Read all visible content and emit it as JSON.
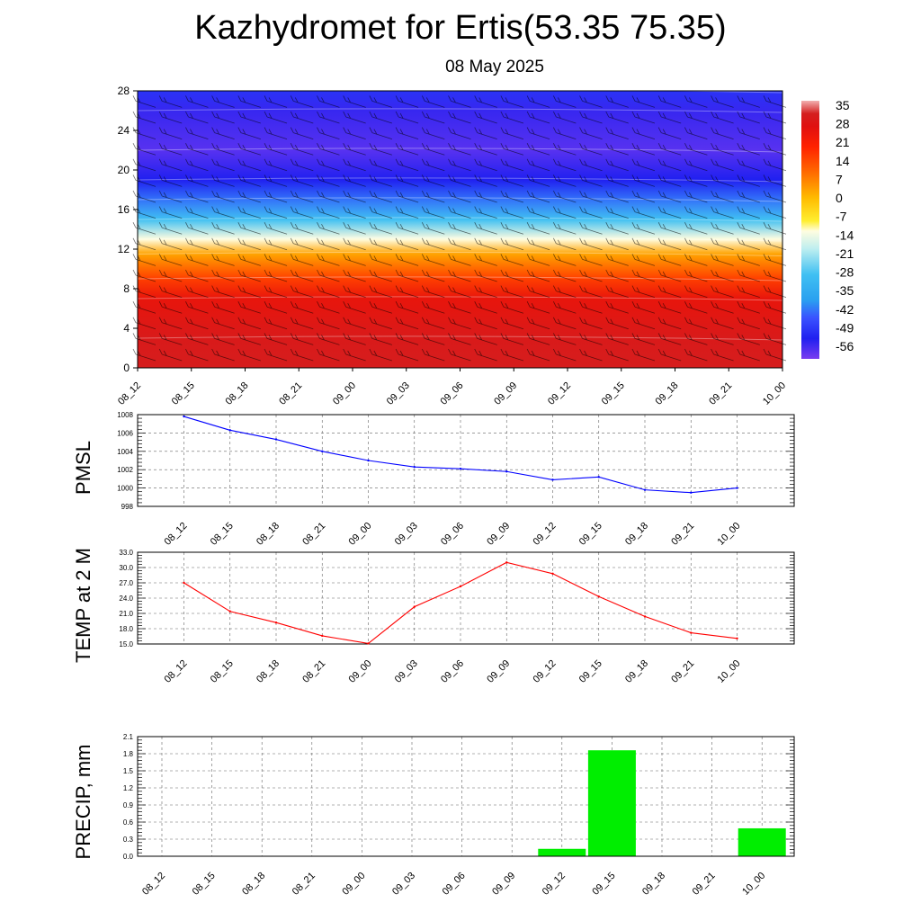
{
  "title": "Kazhydromet for Ertis(53.35 75.35)",
  "subtitle": "08 May 2025",
  "chart_data": [
    {
      "type": "heatmap",
      "title": "",
      "x_labels": [
        "08_12",
        "08_15",
        "08_18",
        "08_21",
        "09_00",
        "09_03",
        "09_06",
        "09_09",
        "09_12",
        "09_15",
        "09_18",
        "09_21",
        "10_00"
      ],
      "y_ticks": [
        "0",
        "4",
        "8",
        "12",
        "16",
        "20",
        "24",
        "28"
      ],
      "ylim": [
        0,
        28
      ],
      "colorbar_labels": [
        "35",
        "28",
        "21",
        "14",
        "7",
        "0",
        "-7",
        "-14",
        "-21",
        "-28",
        "-35",
        "-42",
        "-49",
        "-56"
      ],
      "colorbar_range": [
        -63,
        38
      ],
      "temperature_profile": [
        {
          "height": 0,
          "value": 32
        },
        {
          "height": 3,
          "value": 31
        },
        {
          "height": 7,
          "value": 26
        },
        {
          "height": 9,
          "value": 16
        },
        {
          "height": 11.5,
          "value": 3
        },
        {
          "height": 13,
          "value": -13
        },
        {
          "height": 15,
          "value": -30
        },
        {
          "height": 17,
          "value": -44
        },
        {
          "height": 19,
          "value": -55
        },
        {
          "height": 22,
          "value": -60
        },
        {
          "height": 26,
          "value": -57
        },
        {
          "height": 28,
          "value": -52
        }
      ],
      "overlay": "wind-barbs"
    },
    {
      "type": "line",
      "ylabel": "PMSL",
      "categories": [
        "08_12",
        "08_15",
        "08_18",
        "08_21",
        "09_00",
        "09_03",
        "09_06",
        "09_09",
        "09_12",
        "09_15",
        "09_18",
        "09_21",
        "10_00"
      ],
      "y_ticks": [
        "998",
        "1000",
        "1002",
        "1004",
        "1006",
        "1008"
      ],
      "ylim": [
        998,
        1008
      ],
      "values": [
        1007.8,
        1006.3,
        1005.3,
        1004.0,
        1003.0,
        1002.3,
        1002.1,
        1001.8,
        1000.9,
        1001.2,
        999.8,
        999.5,
        1000.0
      ],
      "color": "#0000ff",
      "grid": true
    },
    {
      "type": "line",
      "ylabel": "TEMP at 2 M",
      "categories": [
        "08_12",
        "08_15",
        "08_18",
        "08_21",
        "09_00",
        "09_03",
        "09_06",
        "09_09",
        "09_12",
        "09_15",
        "09_18",
        "09_21",
        "10_00"
      ],
      "y_ticks": [
        "15.0",
        "18.0",
        "21.0",
        "24.0",
        "27.0",
        "30.0",
        "33.0"
      ],
      "ylim": [
        15,
        33
      ],
      "values": [
        27.0,
        21.4,
        19.2,
        16.6,
        15.1,
        22.3,
        26.3,
        31.0,
        28.8,
        24.3,
        20.4,
        17.2,
        16.1
      ],
      "color": "#ff0000",
      "grid": true
    },
    {
      "type": "bar",
      "ylabel": "PRECIP, mm",
      "categories": [
        "08_12",
        "08_15",
        "08_18",
        "08_21",
        "09_00",
        "09_03",
        "09_06",
        "09_09",
        "09_12",
        "09_15",
        "09_18",
        "09_21",
        "10_00"
      ],
      "y_ticks": [
        "0.0",
        "0.3",
        "0.6",
        "0.9",
        "1.2",
        "1.5",
        "1.8",
        "2.1"
      ],
      "ylim": [
        0,
        2.1
      ],
      "values": [
        0,
        0,
        0,
        0,
        0,
        0,
        0,
        0,
        0.13,
        1.86,
        0,
        0,
        0.49
      ],
      "color": "#00ee00",
      "grid": true
    }
  ]
}
